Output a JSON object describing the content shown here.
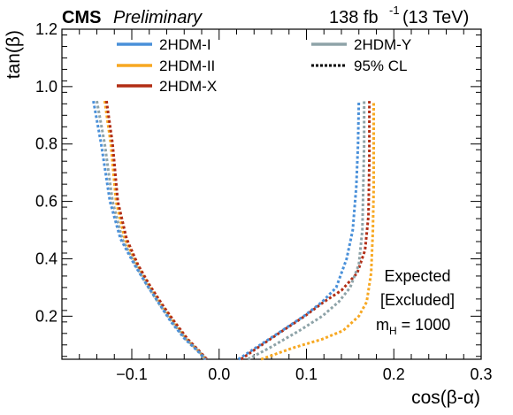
{
  "header": {
    "experiment": "CMS",
    "status": "Preliminary",
    "lumi_value": "138 fb",
    "lumi_exp": "-1",
    "lumi_energy": "(13 TeV)"
  },
  "annotation": {
    "line1": "Expected",
    "line2": "[Excluded]",
    "line3_main": "m",
    "line3_sub": "H",
    "line3_rest": " = 1000"
  },
  "colors": {
    "2HDM-I": "#4a90d9",
    "2HDM-II": "#f7a822",
    "2HDM-X": "#b22d14",
    "2HDM-Y": "#8ea3a8"
  },
  "chart_data": {
    "type": "line",
    "xlabel": "cos(β-α)",
    "ylabel": "tan(β)",
    "xlim": [
      -0.18,
      0.3
    ],
    "ylim": [
      0.05,
      1.2
    ],
    "x_ticks": [
      -0.1,
      0.0,
      0.1,
      0.2,
      0.3
    ],
    "x_tick_labels": [
      "−0.1",
      "0.0",
      "0.1",
      "0.2",
      "0.3"
    ],
    "y_ticks": [
      0.2,
      0.4,
      0.6,
      0.8,
      1.0,
      1.2
    ],
    "y_tick_labels": [
      "0.2",
      "0.4",
      "0.6",
      "0.8",
      "1.0",
      "1.2"
    ],
    "legend": {
      "placement": "top",
      "entries": [
        {
          "label": "2HDM-I",
          "style": "solid",
          "color": "#4a90d9"
        },
        {
          "label": "2HDM-II",
          "style": "solid",
          "color": "#f7a822"
        },
        {
          "label": "2HDM-X",
          "style": "solid",
          "color": "#b22d14"
        },
        {
          "label": "2HDM-Y",
          "style": "solid",
          "color": "#8ea3a8"
        },
        {
          "label": "95% CL",
          "style": "dotted",
          "color": "#000000"
        }
      ]
    },
    "series": [
      {
        "name": "2HDM-I",
        "left": [
          [
            -0.144,
            0.95
          ],
          [
            -0.135,
            0.8
          ],
          [
            -0.125,
            0.6
          ],
          [
            -0.113,
            0.47
          ],
          [
            -0.097,
            0.38
          ],
          [
            -0.085,
            0.32
          ],
          [
            -0.07,
            0.25
          ],
          [
            -0.055,
            0.18
          ],
          [
            -0.039,
            0.12
          ],
          [
            -0.025,
            0.08
          ],
          [
            -0.016,
            0.05
          ]
        ],
        "right": [
          [
            0.022,
            0.05
          ],
          [
            0.042,
            0.09
          ],
          [
            0.072,
            0.15
          ],
          [
            0.097,
            0.2
          ],
          [
            0.118,
            0.25
          ],
          [
            0.134,
            0.3
          ],
          [
            0.146,
            0.4
          ],
          [
            0.153,
            0.5
          ],
          [
            0.157,
            0.65
          ],
          [
            0.159,
            0.8
          ],
          [
            0.16,
            0.95
          ]
        ]
      },
      {
        "name": "2HDM-II",
        "left": [
          [
            -0.131,
            0.95
          ],
          [
            -0.124,
            0.8
          ],
          [
            -0.118,
            0.6
          ],
          [
            -0.108,
            0.47
          ],
          [
            -0.094,
            0.38
          ],
          [
            -0.081,
            0.31
          ],
          [
            -0.066,
            0.24
          ],
          [
            -0.052,
            0.18
          ],
          [
            -0.037,
            0.12
          ],
          [
            -0.024,
            0.08
          ],
          [
            -0.015,
            0.05
          ]
        ],
        "right": [
          [
            0.048,
            0.05
          ],
          [
            0.085,
            0.09
          ],
          [
            0.118,
            0.12
          ],
          [
            0.142,
            0.15
          ],
          [
            0.16,
            0.2
          ],
          [
            0.169,
            0.25
          ],
          [
            0.174,
            0.35
          ],
          [
            0.176,
            0.5
          ],
          [
            0.177,
            0.65
          ],
          [
            0.177,
            0.8
          ],
          [
            0.177,
            0.95
          ]
        ]
      },
      {
        "name": "2HDM-X",
        "left": [
          [
            -0.129,
            0.95
          ],
          [
            -0.122,
            0.8
          ],
          [
            -0.116,
            0.6
          ],
          [
            -0.106,
            0.47
          ],
          [
            -0.093,
            0.38
          ],
          [
            -0.08,
            0.31
          ],
          [
            -0.065,
            0.24
          ],
          [
            -0.051,
            0.18
          ],
          [
            -0.036,
            0.12
          ],
          [
            -0.023,
            0.08
          ],
          [
            -0.014,
            0.05
          ]
        ],
        "right": [
          [
            0.025,
            0.05
          ],
          [
            0.044,
            0.09
          ],
          [
            0.073,
            0.15
          ],
          [
            0.098,
            0.2
          ],
          [
            0.12,
            0.25
          ],
          [
            0.14,
            0.29
          ],
          [
            0.158,
            0.35
          ],
          [
            0.167,
            0.43
          ],
          [
            0.171,
            0.55
          ],
          [
            0.172,
            0.75
          ],
          [
            0.172,
            0.95
          ]
        ]
      },
      {
        "name": "2HDM-Y",
        "left": [
          [
            -0.14,
            0.95
          ],
          [
            -0.131,
            0.8
          ],
          [
            -0.122,
            0.6
          ],
          [
            -0.111,
            0.47
          ],
          [
            -0.096,
            0.38
          ],
          [
            -0.083,
            0.31
          ],
          [
            -0.068,
            0.24
          ],
          [
            -0.054,
            0.18
          ],
          [
            -0.038,
            0.12
          ],
          [
            -0.024,
            0.08
          ],
          [
            -0.015,
            0.05
          ]
        ],
        "right": [
          [
            0.033,
            0.05
          ],
          [
            0.058,
            0.09
          ],
          [
            0.092,
            0.15
          ],
          [
            0.118,
            0.2
          ],
          [
            0.137,
            0.25
          ],
          [
            0.15,
            0.3
          ],
          [
            0.16,
            0.38
          ],
          [
            0.164,
            0.5
          ],
          [
            0.165,
            0.65
          ],
          [
            0.166,
            0.8
          ],
          [
            0.166,
            0.95
          ]
        ]
      }
    ]
  }
}
